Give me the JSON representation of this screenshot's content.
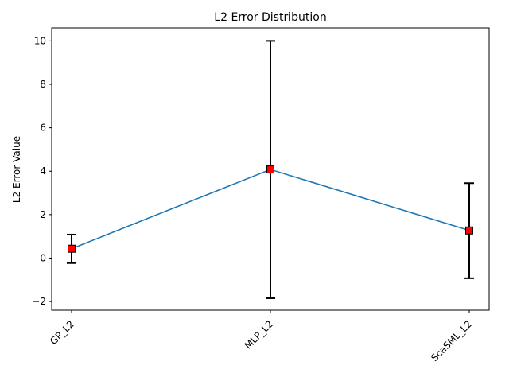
{
  "chart_data": {
    "type": "line",
    "title": "L2 Error Distribution",
    "xlabel": "",
    "ylabel": "L2 Error Value",
    "categories": [
      "GP_L2",
      "MLP_L2",
      "ScaSML_L2"
    ],
    "series": [
      {
        "name": "mean",
        "values": [
          0.43,
          4.08,
          1.27
        ],
        "lower": [
          -0.23,
          -1.85,
          -0.93
        ],
        "upper": [
          1.08,
          10.0,
          3.45
        ],
        "line_color": "#1f77b4",
        "marker_color": "#ff0000",
        "marker_edge_color": "#000000",
        "errorbar_color": "#000000"
      }
    ],
    "ylim": [
      -2.4,
      10.6
    ],
    "yticks": [
      -2,
      0,
      2,
      4,
      6,
      8,
      10
    ],
    "ytick_labels": [
      "−2",
      "0",
      "2",
      "4",
      "6",
      "8",
      "10"
    ],
    "xtick_rotation": 45,
    "grid": false,
    "legend": "none"
  }
}
